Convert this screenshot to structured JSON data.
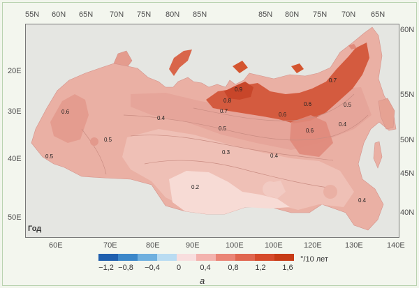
{
  "map": {
    "top_labels": [
      "55N",
      "60N",
      "65N",
      "70N",
      "75N",
      "80N",
      "85N",
      "85N",
      "80N",
      "75N",
      "70N",
      "65N"
    ],
    "bottom_labels": [
      "60E",
      "70E",
      "80E",
      "90E",
      "100E",
      "100E",
      "120E",
      "130E",
      "140E"
    ],
    "left_labels": [
      "20E",
      "30E",
      "40E",
      "50E"
    ],
    "right_labels": [
      "60N",
      "55N",
      "50N",
      "45N",
      "40N"
    ],
    "panel_label": "Год",
    "isolines": [
      "0.6",
      "0.5",
      "0.5",
      "0.4",
      "0.3",
      "0.2",
      "0.4",
      "0.5",
      "0.7",
      "0.8",
      "0.9",
      "0.6",
      "0.6",
      "0.7",
      "0.5",
      "0.6",
      "0.4",
      "0.4"
    ]
  },
  "legend": {
    "ticks": [
      "−1,2",
      "−0,8",
      "−0,4",
      "0",
      "0,4",
      "0,8",
      "1,2",
      "1,6"
    ],
    "unit": "°/10 лет",
    "colors": [
      "#1f5fae",
      "#3b87c9",
      "#6fb0df",
      "#b9dcf2",
      "#f8dede",
      "#f3b3ae",
      "#ea8576",
      "#e0664f",
      "#d64a2b",
      "#c73b16"
    ]
  },
  "caption": "а"
}
